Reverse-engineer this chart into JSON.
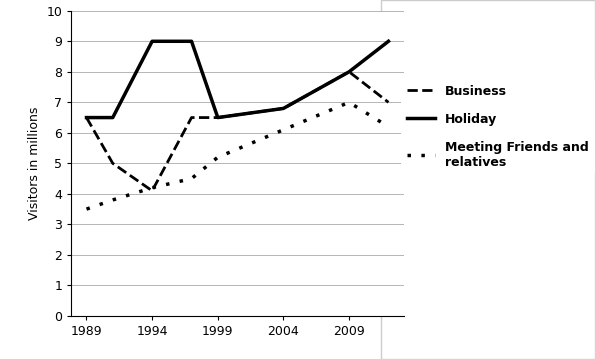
{
  "years": [
    1989,
    1991,
    1994,
    1997,
    1999,
    2004,
    2009,
    2012
  ],
  "business": [
    6.5,
    5.0,
    4.1,
    6.5,
    6.5,
    6.8,
    8.0,
    7.0
  ],
  "holiday": [
    6.5,
    6.5,
    9.0,
    9.0,
    6.5,
    6.8,
    8.0,
    9.0
  ],
  "meeting": [
    3.5,
    3.8,
    4.2,
    4.5,
    5.2,
    6.1,
    7.0,
    6.2
  ],
  "ylabel": "Visitors in millions",
  "ylim": [
    0,
    10
  ],
  "yticks": [
    0,
    1,
    2,
    3,
    4,
    5,
    6,
    7,
    8,
    9,
    10
  ],
  "xticks": [
    1989,
    1994,
    1999,
    2004,
    2009
  ],
  "legend_labels": [
    "Business",
    "Holiday",
    "Meeting Friends and\nrelatives"
  ],
  "line_color": "#000000",
  "bg_color": "#ffffff",
  "grid_color": "#aaaaaa"
}
